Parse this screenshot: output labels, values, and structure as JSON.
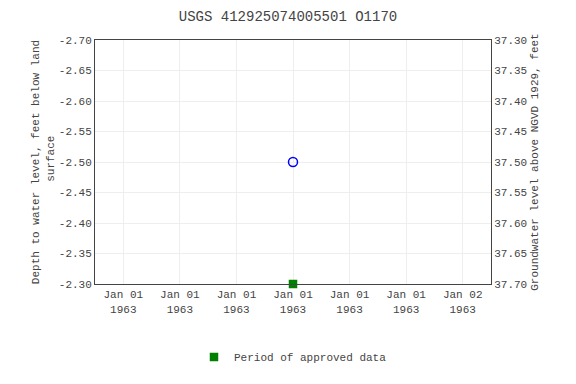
{
  "chart_data": {
    "type": "scatter",
    "title": "USGS 412925074005501 O1170",
    "ylabel": "Depth to water level, feet below land\n surface",
    "y2label": "Groundwater level above NGVD 1929, feet",
    "categories": [
      "Jan 01\n1963",
      "Jan 01\n1963",
      "Jan 01\n1963",
      "Jan 01\n1963",
      "Jan 01\n1963",
      "Jan 01\n1963",
      "Jan 02\n1963"
    ],
    "series": [
      {
        "color": "#0000ff",
        "marker": "circle-open",
        "values": [
          null,
          null,
          null,
          -2.5,
          null,
          null,
          null
        ]
      },
      {
        "name": "Period of approved data",
        "color": "#008000",
        "marker": "square",
        "values": [
          null,
          null,
          null,
          -2.3,
          null,
          null,
          null
        ]
      }
    ],
    "ylim": [
      -2.3,
      -2.7
    ],
    "yticks": [
      {
        "value": -2.7,
        "label": "-2.70"
      },
      -2.65,
      {
        "value": -2.6,
        "label": "-2.60"
      },
      -2.55,
      {
        "value": -2.5,
        "label": "-2.50"
      },
      -2.45,
      {
        "value": -2.4,
        "label": "-2.40"
      },
      -2.35,
      {
        "value": -2.3,
        "label": "-2.30"
      }
    ],
    "y2lim": [
      37.7,
      37.3
    ],
    "y2ticks": [
      {
        "value": 37.3,
        "label": "37.30"
      },
      37.35,
      {
        "value": 37.4,
        "label": "37.40"
      },
      37.45,
      {
        "value": 37.5,
        "label": "37.50"
      },
      37.55,
      {
        "value": 37.6,
        "label": "37.60"
      },
      37.65,
      {
        "value": 37.7,
        "label": "37.70"
      }
    ],
    "grid": true,
    "legend": "bottom"
  }
}
